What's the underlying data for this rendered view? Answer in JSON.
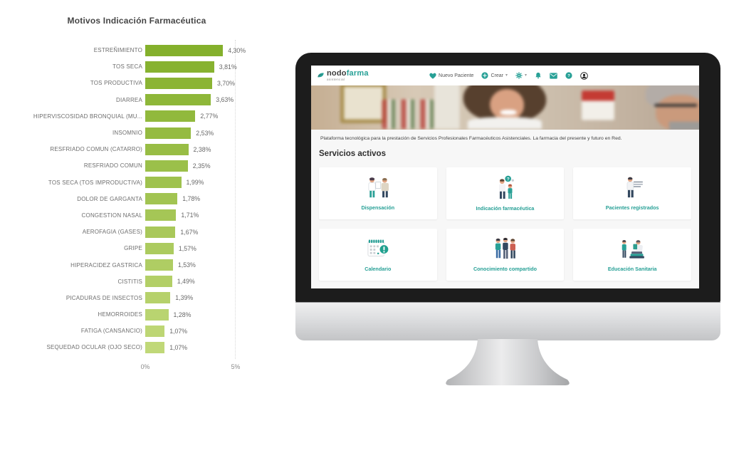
{
  "chart_data": {
    "type": "bar",
    "orientation": "horizontal",
    "title": "Motivos Indicación Farmacéutica",
    "categories": [
      "ESTREÑIMIENTO",
      "TOS SECA",
      "TOS PRODUCTIVA",
      "DIARREA",
      "HIPERVISCOSIDAD BRONQUIAL (MU...",
      "INSOMNIO",
      "RESFRIADO COMUN (CATARRO)",
      "RESFRIADO COMUN",
      "TOS SECA (TOS IMPRODUCTIVA)",
      "DOLOR DE GARGANTA",
      "CONGESTION NASAL",
      "AEROFAGIA (GASES)",
      "GRIPE",
      "HIPERACIDEZ GASTRICA",
      "CISTITIS",
      "PICADURAS DE INSECTOS",
      "HEMORROIDES",
      "FATIGA (CANSANCIO)",
      "SEQUEDAD OCULAR (OJO SECO)"
    ],
    "values": [
      4.3,
      3.81,
      3.7,
      3.63,
      2.77,
      2.53,
      2.38,
      2.35,
      1.99,
      1.78,
      1.71,
      1.67,
      1.57,
      1.53,
      1.49,
      1.39,
      1.28,
      1.07,
      1.07
    ],
    "value_labels": [
      "4,30%",
      "3,81%",
      "3,70%",
      "3,63%",
      "2,77%",
      "2,53%",
      "2,38%",
      "2,35%",
      "1,99%",
      "1,78%",
      "1,71%",
      "1,67%",
      "1,57%",
      "1,53%",
      "1,49%",
      "1,39%",
      "1,28%",
      "1,07%",
      "1,07%"
    ],
    "xlabel": "",
    "ylabel": "",
    "xlim": [
      0,
      5
    ],
    "x_ticks": [
      "0%",
      "5%"
    ],
    "grid": "dotted vertical line at 5%",
    "legend": "none",
    "bar_color_start": "#84b02c",
    "bar_color_end": "#c0d878"
  },
  "site": {
    "logo": {
      "name_dark": "nodo",
      "name_accent": "farma",
      "subtitle": "asistencial"
    },
    "nav": {
      "new_patient": "Nuevo Paciente",
      "create": "Crear",
      "icons": [
        "heart-icon",
        "plus-circle-icon",
        "gear-icon",
        "bell-icon",
        "envelope-icon",
        "help-circle-icon",
        "user-circle-icon"
      ]
    },
    "tagline": "Plataforma tecnológica para la prestación de Servicios Profesionales Farmacéuticos Asistenciales. La farmacia del presente y futuro en Red.",
    "section_title": "Servicios activos",
    "services": [
      {
        "label": "Dispensación"
      },
      {
        "label": "Indicación farmacéutica"
      },
      {
        "label": "Pacientes registrados"
      },
      {
        "label": "Calendario"
      },
      {
        "label": "Conocimiento compartido"
      },
      {
        "label": "Educación Sanitaria"
      }
    ],
    "colors": {
      "accent_teal": "#27a096",
      "navbar_bg": "#ffffff",
      "content_bg": "#f7f7f7"
    }
  }
}
